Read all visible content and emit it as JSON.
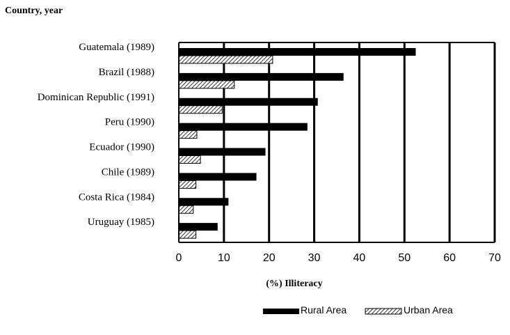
{
  "chart_data": {
    "type": "bar",
    "orientation": "horizontal",
    "title": "Country, year",
    "xlabel": "(%) Illiteracy",
    "xlim": [
      0,
      70
    ],
    "xticks": [
      0,
      10,
      20,
      30,
      40,
      50,
      60,
      70
    ],
    "grid": true,
    "legend_position": "bottom-right",
    "categories": [
      "Guatemala (1989)",
      "Brazil (1988)",
      "Dominican Republic (1991)",
      "Peru (1990)",
      "Ecuador (1990)",
      "Chile (1989)",
      "Costa Rica (1984)",
      "Uruguay (1985)"
    ],
    "series": [
      {
        "name": "Rural Area",
        "color": "#000000",
        "pattern": "solid",
        "values": [
          52.5,
          36.5,
          30.8,
          28.5,
          19.2,
          17.2,
          11,
          8.6
        ]
      },
      {
        "name": "Urban Area",
        "color": "#000000",
        "pattern": "hatched",
        "values": [
          20.8,
          12.3,
          9.6,
          4,
          4.8,
          3.8,
          3.2,
          3.8
        ]
      }
    ]
  }
}
